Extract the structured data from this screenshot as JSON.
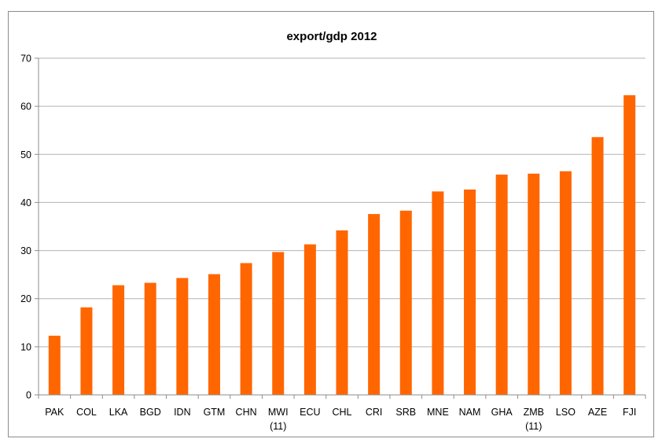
{
  "chart_data": {
    "type": "bar",
    "title": "export/gdp 2012",
    "xlabel": "",
    "ylabel": "",
    "ylim": [
      0,
      70
    ],
    "yticks": [
      0,
      10,
      20,
      30,
      40,
      50,
      60,
      70
    ],
    "grid": true,
    "legend": "none",
    "bar_color": "#ff6600",
    "categories": [
      [
        "PAK"
      ],
      [
        "COL"
      ],
      [
        "LKA"
      ],
      [
        "BGD"
      ],
      [
        "IDN"
      ],
      [
        "GTM"
      ],
      [
        "CHN"
      ],
      [
        "MWI",
        "(11)"
      ],
      [
        "ECU"
      ],
      [
        "CHL"
      ],
      [
        "CRI"
      ],
      [
        "SRB"
      ],
      [
        "MNE"
      ],
      [
        "NAM"
      ],
      [
        "GHA"
      ],
      [
        "ZMB",
        "(11)"
      ],
      [
        "LSO"
      ],
      [
        "AZE"
      ],
      [
        "FJI"
      ]
    ],
    "values": [
      12.3,
      18.2,
      22.8,
      23.3,
      24.3,
      25.1,
      27.4,
      29.7,
      31.3,
      34.2,
      37.6,
      38.3,
      42.3,
      42.7,
      45.8,
      46.0,
      46.5,
      53.6,
      62.3
    ]
  }
}
